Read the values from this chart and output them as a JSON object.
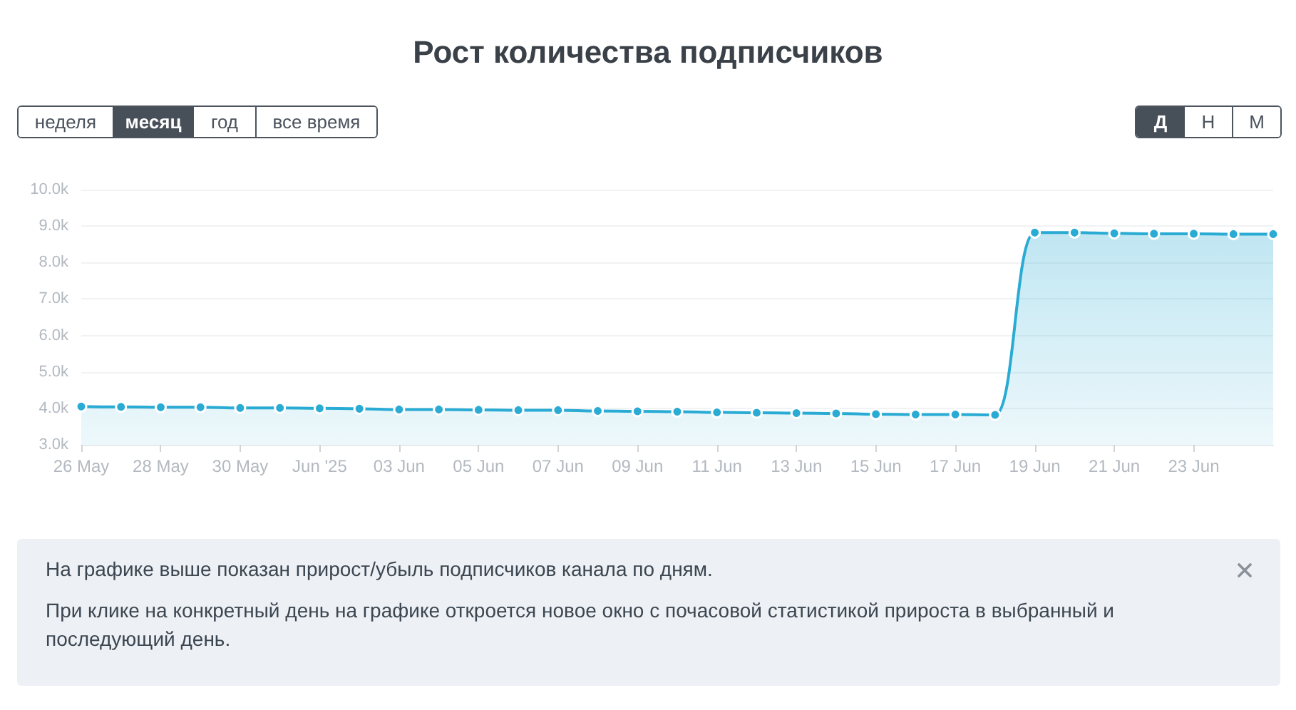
{
  "chart_data": {
    "type": "area",
    "title": "Рост количества подписчиков",
    "x": [
      "2025-05-26",
      "2025-05-27",
      "2025-05-28",
      "2025-05-29",
      "2025-05-30",
      "2025-05-31",
      "2025-06-01",
      "2025-06-02",
      "2025-06-03",
      "2025-06-04",
      "2025-06-05",
      "2025-06-06",
      "2025-06-07",
      "2025-06-08",
      "2025-06-09",
      "2025-06-10",
      "2025-06-11",
      "2025-06-12",
      "2025-06-13",
      "2025-06-14",
      "2025-06-15",
      "2025-06-16",
      "2025-06-17",
      "2025-06-18",
      "2025-06-19",
      "2025-06-20",
      "2025-06-21",
      "2025-06-22",
      "2025-06-23",
      "2025-06-24",
      "2025-06-25"
    ],
    "values": [
      4050,
      4040,
      4030,
      4030,
      4010,
      4010,
      4000,
      3990,
      3970,
      3970,
      3960,
      3950,
      3950,
      3930,
      3920,
      3910,
      3890,
      3880,
      3870,
      3860,
      3840,
      3830,
      3830,
      3820,
      8820,
      8820,
      8800,
      8790,
      8790,
      8780,
      8780
    ],
    "color": "#29abd4",
    "xlim": [
      "2025-05-26",
      "2025-06-25"
    ],
    "xticks": [
      {
        "value": "2025-05-26",
        "label": "26 May"
      },
      {
        "value": "2025-05-28",
        "label": "28 May"
      },
      {
        "value": "2025-05-30",
        "label": "30 May"
      },
      {
        "value": "2025-06-01",
        "label": "Jun '25"
      },
      {
        "value": "2025-06-03",
        "label": "03 Jun"
      },
      {
        "value": "2025-06-05",
        "label": "05 Jun"
      },
      {
        "value": "2025-06-07",
        "label": "07 Jun"
      },
      {
        "value": "2025-06-09",
        "label": "09 Jun"
      },
      {
        "value": "2025-06-11",
        "label": "11 Jun"
      },
      {
        "value": "2025-06-13",
        "label": "13 Jun"
      },
      {
        "value": "2025-06-15",
        "label": "15 Jun"
      },
      {
        "value": "2025-06-17",
        "label": "17 Jun"
      },
      {
        "value": "2025-06-19",
        "label": "19 Jun"
      },
      {
        "value": "2025-06-21",
        "label": "21 Jun"
      },
      {
        "value": "2025-06-23",
        "label": "23 Jun"
      }
    ],
    "ylim": [
      3000,
      10000
    ],
    "yticks": [
      {
        "value": 3000,
        "label": "3.0k"
      },
      {
        "value": 4000,
        "label": "4.0k"
      },
      {
        "value": 5000,
        "label": "5.0k"
      },
      {
        "value": 6000,
        "label": "6.0k"
      },
      {
        "value": 7000,
        "label": "7.0k"
      },
      {
        "value": 8000,
        "label": "8.0k"
      },
      {
        "value": 9000,
        "label": "9.0k"
      },
      {
        "value": 10000,
        "label": "10.0k"
      }
    ],
    "grid": "y",
    "marker": "circle",
    "annotations": [
      "неделя",
      "месяц",
      "год",
      "все время",
      "Д",
      "Н",
      "М",
      "На графике выше показан прирост/убыль подписчиков канала по дням.",
      "При клике на конкретный день на графике откроется новое окно с почасовой статистикой прироста в выбранный и последующий день."
    ]
  }
}
